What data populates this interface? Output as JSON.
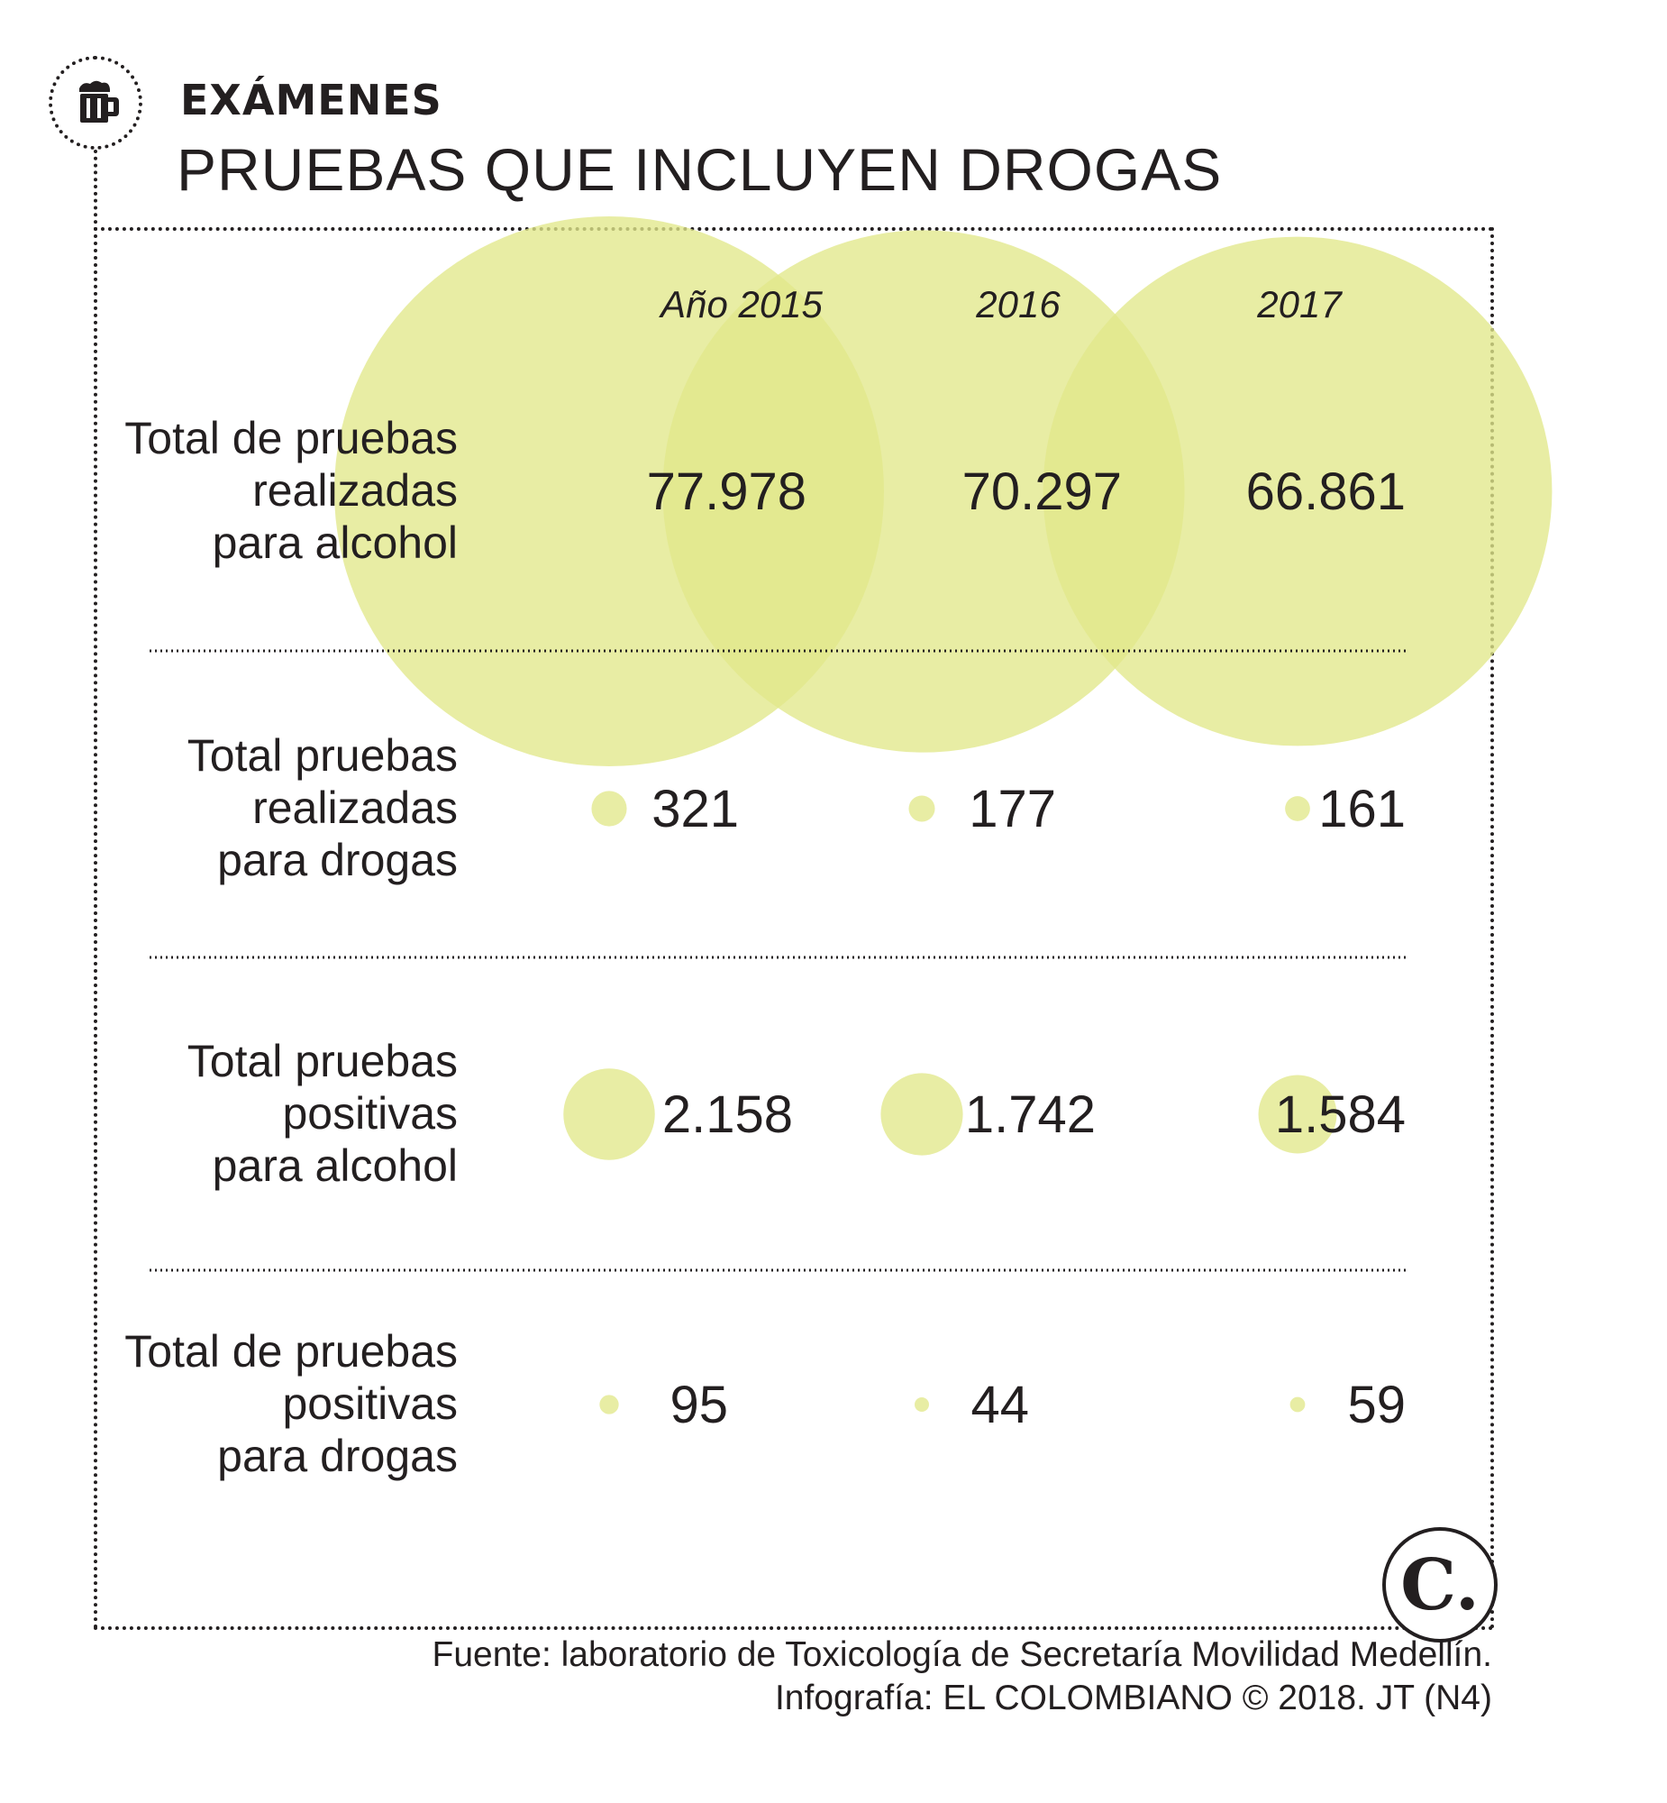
{
  "kicker": "EXÁMENES",
  "title": "PRUEBAS QUE INCLUYEN DROGAS",
  "footer": {
    "source": "Fuente: laboratorio de Toxicología de Secretaría Movilidad Medellín.",
    "credit": "Infografía: EL COLOMBIANO © 2018. JT (N4)"
  },
  "logo_letter": "C.",
  "icons": {
    "header": "beer-mug-icon",
    "brand": "el-colombiano-logo-icon"
  },
  "colors": {
    "bubble": "#e2e88a",
    "bubble_opacity": 0.78,
    "text": "#231f20"
  },
  "chart_data": {
    "type": "bubble-table",
    "years": [
      "Año 2015",
      "2016",
      "2017"
    ],
    "rows": [
      {
        "label": [
          "Total de pruebas",
          "realizadas",
          "para alcohol"
        ],
        "values": [
          77978
        ],
        "display": [
          "77.978",
          "70.297",
          "66.861"
        ]
      },
      {
        "label": [
          "Total pruebas",
          "realizadas",
          "para drogas"
        ],
        "display": [
          "321",
          "177",
          "161"
        ]
      },
      {
        "label": [
          "Total pruebas",
          "positivas",
          "para alcohol"
        ],
        "display": [
          "2.158",
          "1.742",
          "1.584"
        ]
      },
      {
        "label": [
          "Total de pruebas",
          "positivas",
          "para drogas"
        ],
        "display": [
          "95",
          "44",
          "59"
        ]
      }
    ],
    "values": [
      [
        77978,
        70297,
        66861
      ],
      [
        321,
        177,
        161
      ],
      [
        2158,
        1742,
        1584
      ],
      [
        95,
        44,
        59
      ]
    ]
  }
}
